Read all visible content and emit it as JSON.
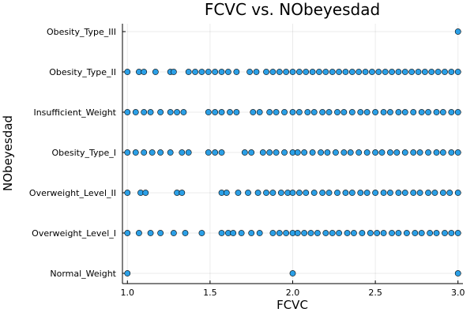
{
  "chart_data": {
    "type": "scatter",
    "title": "FCVC vs. NObeyesdad",
    "xlabel": "FCVC",
    "ylabel": "NObeyesdad",
    "xlim": [
      0.97,
      3.03
    ],
    "x_ticks": [
      {
        "value": 1.0,
        "label": "1.0"
      },
      {
        "value": 1.5,
        "label": "1.5"
      },
      {
        "value": 2.0,
        "label": "2.0"
      },
      {
        "value": 2.5,
        "label": "2.5"
      },
      {
        "value": 3.0,
        "label": "3.0"
      }
    ],
    "categories": [
      "Normal_Weight",
      "Overweight_Level_I",
      "Overweight_Level_II",
      "Obesity_Type_I",
      "Insufficient_Weight",
      "Obesity_Type_II",
      "Obesity_Type_III"
    ],
    "grid": true,
    "legend": "none",
    "marker_color": "#2b9fe6",
    "marker_edge_color": "#000000",
    "series": [
      {
        "category": "Normal_Weight",
        "x": [
          1.0,
          2.0,
          3.0
        ]
      },
      {
        "category": "Overweight_Level_I",
        "x": [
          1.0,
          1.07,
          1.14,
          1.2,
          1.28,
          1.35,
          1.45,
          1.57,
          1.61,
          1.64,
          1.69,
          1.75,
          1.8,
          1.88,
          1.92,
          1.96,
          2.0,
          2.03,
          2.07,
          2.11,
          2.15,
          2.2,
          2.24,
          2.28,
          2.33,
          2.37,
          2.42,
          2.47,
          2.51,
          2.55,
          2.6,
          2.64,
          2.69,
          2.74,
          2.78,
          2.83,
          2.87,
          2.92,
          2.96,
          3.0
        ]
      },
      {
        "category": "Overweight_Level_II",
        "x": [
          1.0,
          1.08,
          1.11,
          1.3,
          1.33,
          1.57,
          1.6,
          1.67,
          1.73,
          1.79,
          1.84,
          1.88,
          1.93,
          1.97,
          2.0,
          2.04,
          2.08,
          2.13,
          2.18,
          2.22,
          2.27,
          2.32,
          2.36,
          2.41,
          2.45,
          2.5,
          2.55,
          2.59,
          2.64,
          2.68,
          2.73,
          2.77,
          2.82,
          2.86,
          2.91,
          2.95,
          3.0
        ]
      },
      {
        "category": "Obesity_Type_I",
        "x": [
          1.0,
          1.05,
          1.1,
          1.15,
          1.2,
          1.26,
          1.33,
          1.37,
          1.49,
          1.53,
          1.57,
          1.71,
          1.75,
          1.82,
          1.86,
          1.9,
          1.95,
          2.0,
          2.03,
          2.07,
          2.12,
          2.17,
          2.21,
          2.26,
          2.31,
          2.35,
          2.4,
          2.45,
          2.5,
          2.54,
          2.59,
          2.63,
          2.68,
          2.73,
          2.77,
          2.82,
          2.87,
          2.91,
          2.96,
          3.0
        ]
      },
      {
        "category": "Insufficient_Weight",
        "x": [
          1.0,
          1.05,
          1.1,
          1.14,
          1.2,
          1.26,
          1.3,
          1.34,
          1.49,
          1.53,
          1.57,
          1.62,
          1.66,
          1.76,
          1.8,
          1.86,
          1.9,
          1.95,
          2.0,
          2.04,
          2.09,
          2.13,
          2.18,
          2.22,
          2.27,
          2.31,
          2.36,
          2.41,
          2.45,
          2.5,
          2.55,
          2.59,
          2.64,
          2.68,
          2.73,
          2.78,
          2.82,
          2.87,
          2.91,
          2.96,
          3.0
        ]
      },
      {
        "category": "Obesity_Type_II",
        "x": [
          1.0,
          1.07,
          1.1,
          1.17,
          1.26,
          1.28,
          1.37,
          1.41,
          1.45,
          1.49,
          1.53,
          1.57,
          1.61,
          1.66,
          1.74,
          1.78,
          1.84,
          1.88,
          1.92,
          1.96,
          2.0,
          2.04,
          2.08,
          2.12,
          2.16,
          2.2,
          2.24,
          2.28,
          2.32,
          2.36,
          2.4,
          2.44,
          2.48,
          2.52,
          2.56,
          2.6,
          2.64,
          2.68,
          2.72,
          2.76,
          2.8,
          2.84,
          2.88,
          2.92,
          2.96,
          3.0
        ]
      },
      {
        "category": "Obesity_Type_III",
        "x": [
          3.0
        ]
      }
    ]
  }
}
